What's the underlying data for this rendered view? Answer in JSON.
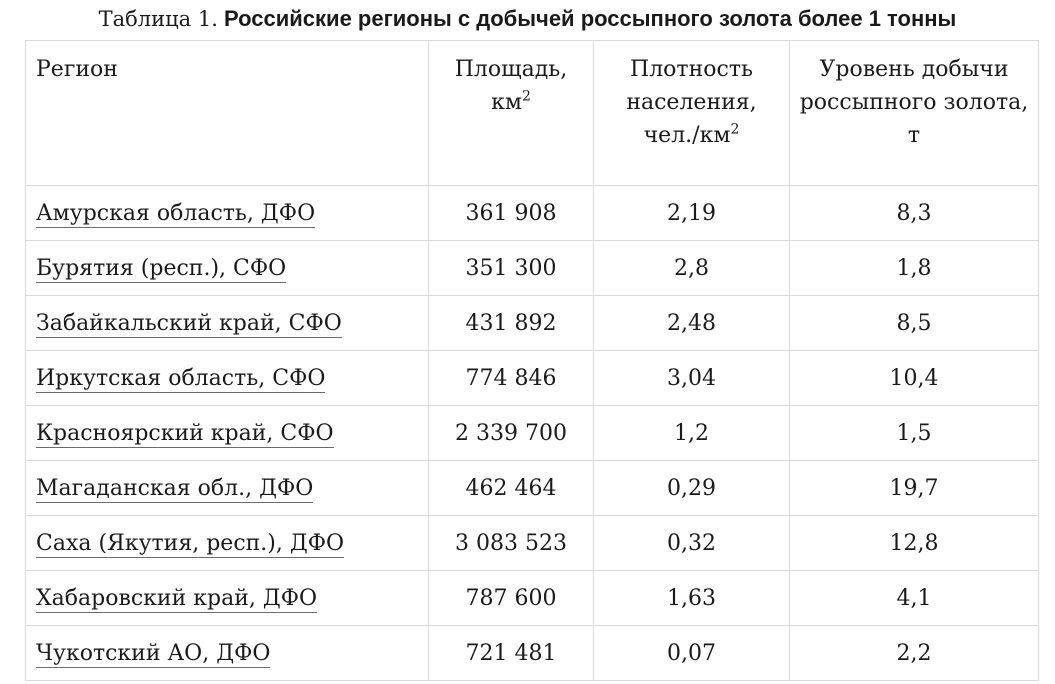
{
  "caption": {
    "prefix": "Таблица 1.",
    "title": "Российские регионы с добычей россыпного золота более 1 тонны"
  },
  "columns": [
    {
      "text": "Регион",
      "sup": ""
    },
    {
      "text": "Площадь, км",
      "sup": "2"
    },
    {
      "text": "Плотность населения, чел./км",
      "sup": "2"
    },
    {
      "text": "Уровень добычи россыпного золота, т",
      "sup": ""
    }
  ],
  "rows": [
    {
      "region": "Амурская область",
      "district": "ДФО",
      "area": "361 908",
      "density": "2,19",
      "gold": "8,3"
    },
    {
      "region": "Бурятия (респ.)",
      "district": "СФО",
      "area": "351 300",
      "density": "2,8",
      "gold": "1,8"
    },
    {
      "region": "Забайкальский край",
      "district": "СФО",
      "area": "431 892",
      "density": "2,48",
      "gold": "8,5"
    },
    {
      "region": "Иркутская область",
      "district": "СФО",
      "area": "774 846",
      "density": "3,04",
      "gold": "10,4"
    },
    {
      "region": "Красноярский край",
      "district": "СФО",
      "area": "2 339 700",
      "density": "1,2",
      "gold": "1,5"
    },
    {
      "region": "Магаданская обл.",
      "district": "ДФО",
      "area": "462 464",
      "density": "0,29",
      "gold": "19,7"
    },
    {
      "region": "Саха (Якутия, респ.)",
      "district": "ДФО",
      "area": "3 083 523",
      "density": "0,32",
      "gold": "12,8"
    },
    {
      "region": "Хабаровский край",
      "district": "ДФО",
      "area": "787 600",
      "density": "1,63",
      "gold": "4,1"
    },
    {
      "region": "Чукотский АО",
      "district": "ДФО",
      "area": "721 481",
      "density": "0,07",
      "gold": "2,2"
    }
  ]
}
